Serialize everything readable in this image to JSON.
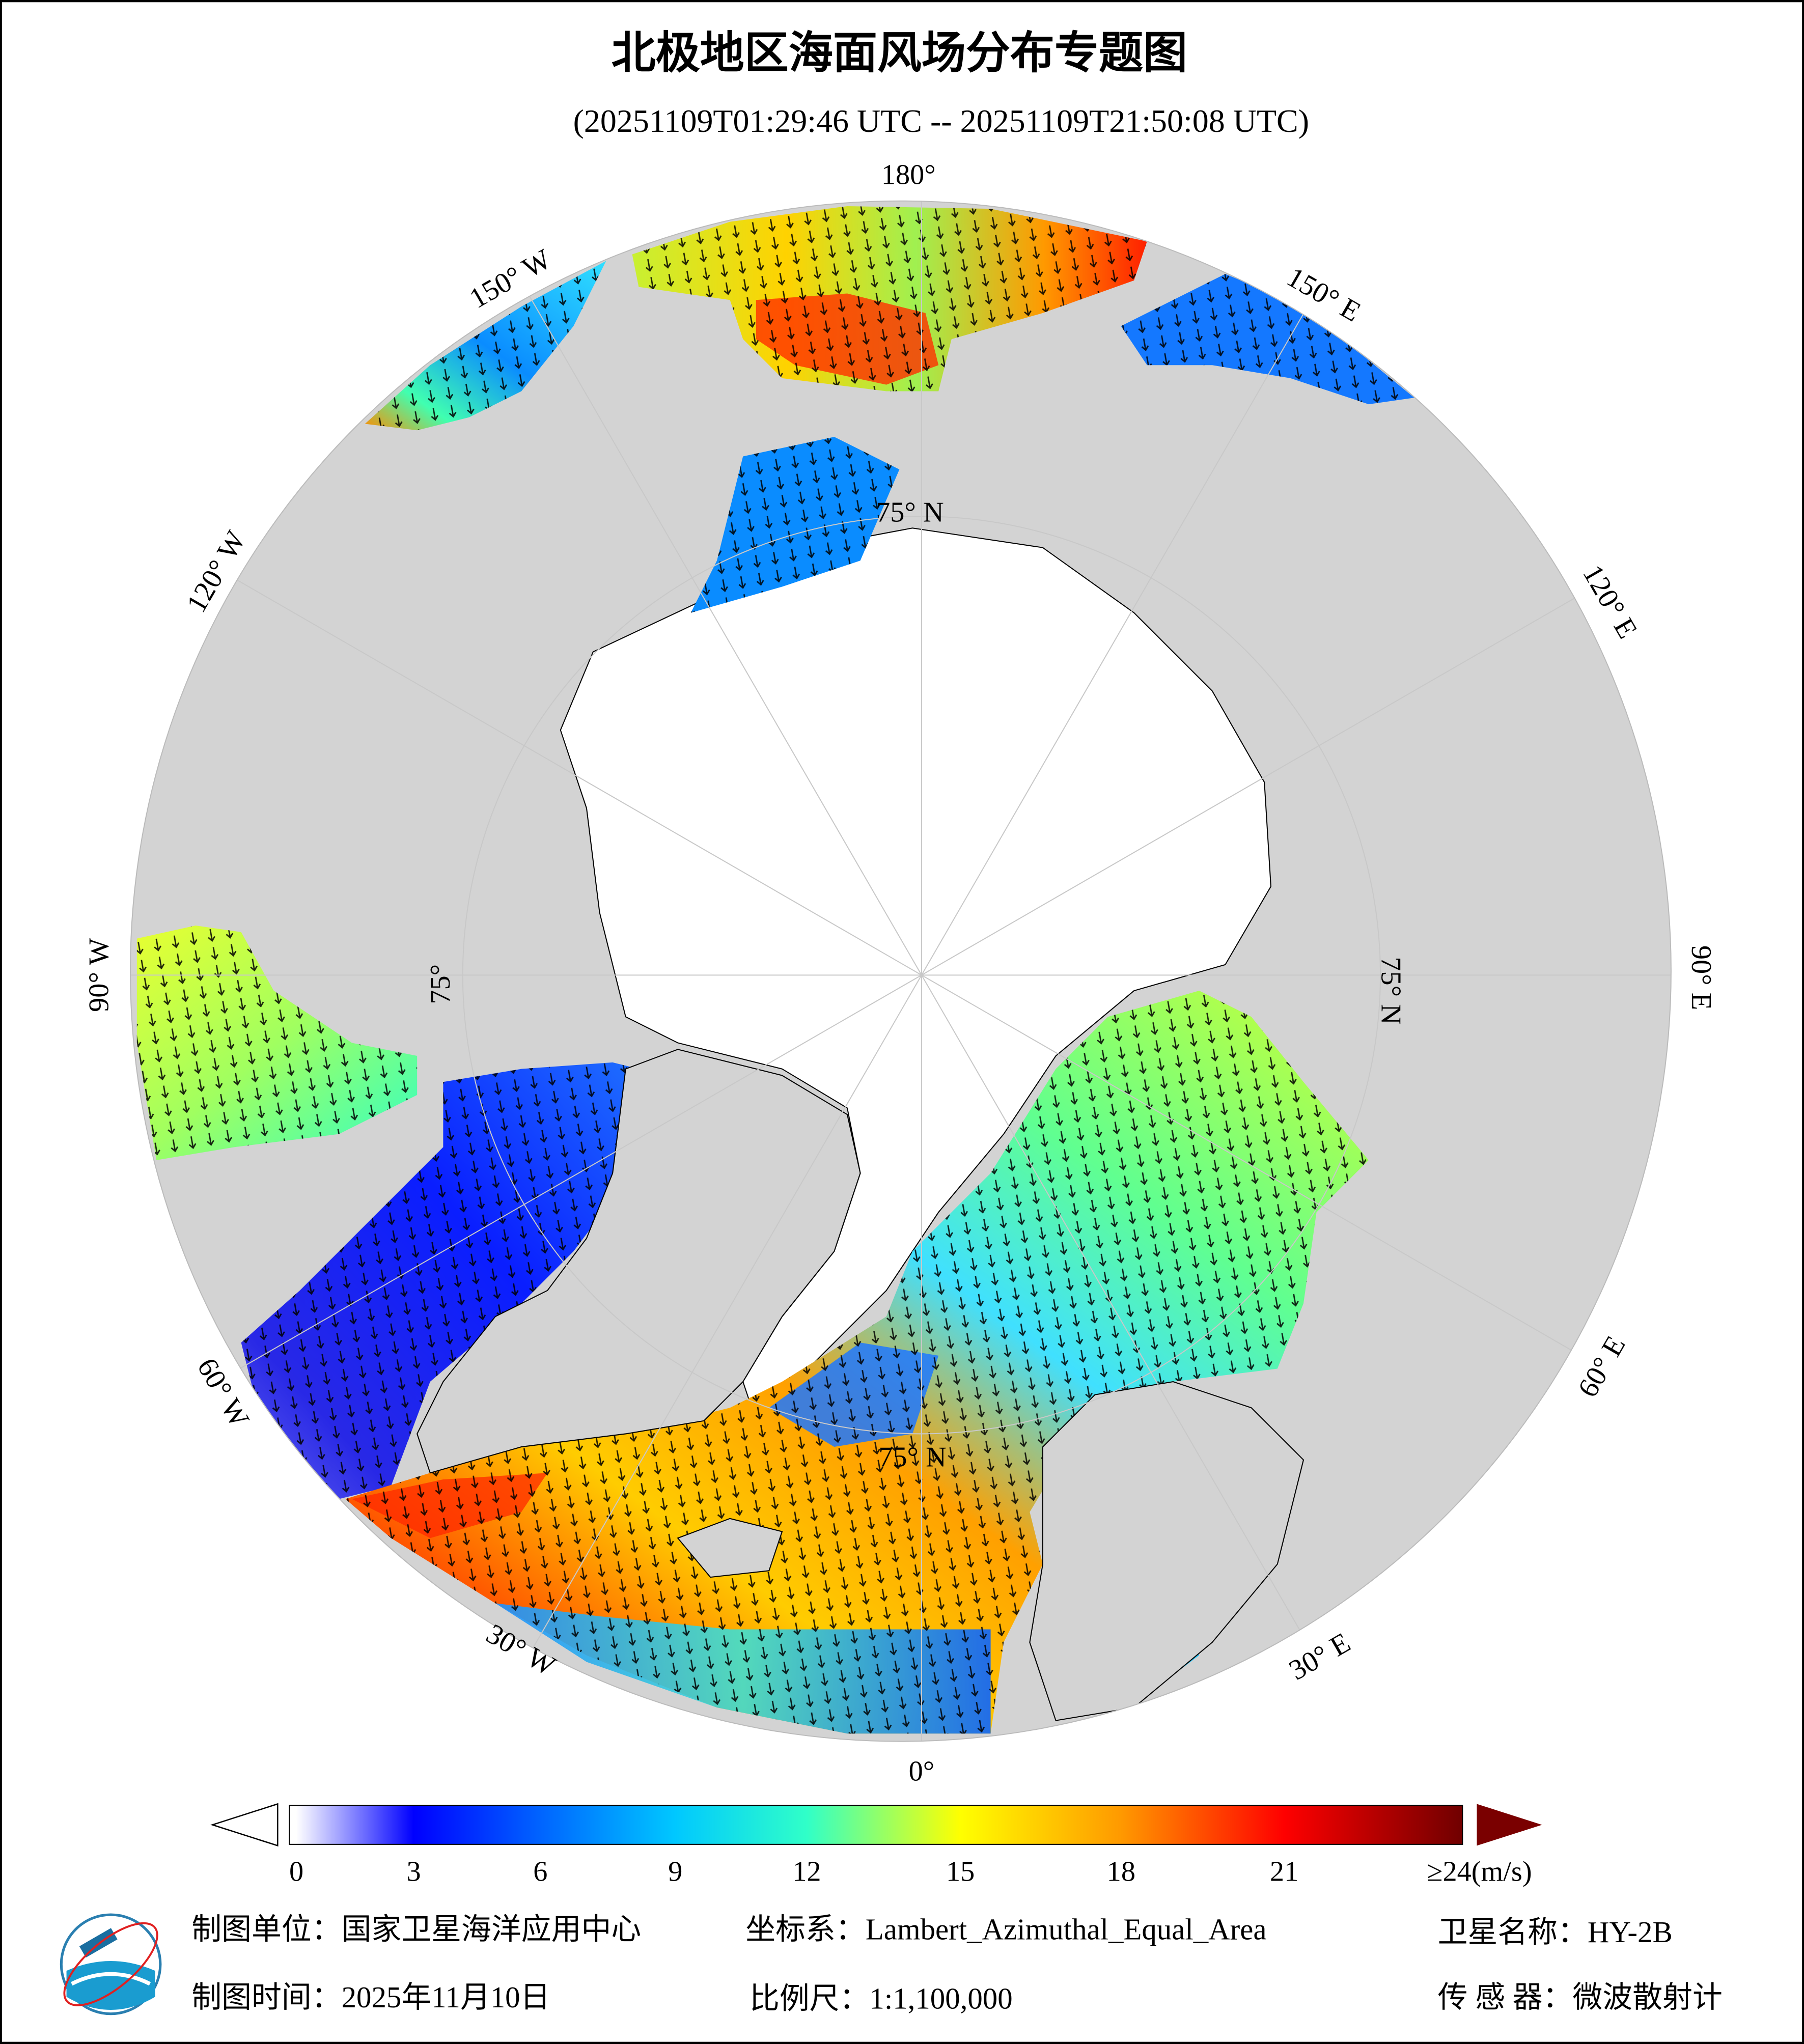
{
  "header": {
    "title": "北极地区海面风场分布专题图",
    "time_range": "(20251109T01:29:46 UTC -- 20251109T21:50:08 UTC)"
  },
  "map": {
    "projection": "Lambert_Azimuthal_Equal_Area",
    "lon_labels": {
      "n180": "180°",
      "w150": "150° W",
      "w120": "120° W",
      "w90": "90° W",
      "w60": "60° W",
      "w30": "30° W",
      "e0": "0°",
      "e30": "30° E",
      "e60": "60° E",
      "e90": "90° E",
      "e120": "120° E",
      "e150": "150° E"
    },
    "lat_labels": {
      "top": "75° N",
      "right": "75° N",
      "bottom": "75° N",
      "left": "75°"
    },
    "colors": {
      "land": "#d3d3d3",
      "ice_nodata": "#ffffff",
      "graticule": "#c8c8c8",
      "coast": "#000000",
      "arrow": "#000000"
    }
  },
  "colorbar": {
    "ticks": [
      "0",
      "3",
      "6",
      "9",
      "12",
      "15",
      "18",
      "21",
      "≥24(m/s)"
    ],
    "values": [
      0,
      3,
      6,
      9,
      12,
      15,
      18,
      21,
      24
    ],
    "unit": "m/s",
    "colors": [
      "#ffffff",
      "#0000ff",
      "#0064ff",
      "#00c8ff",
      "#30ffc8",
      "#ffff00",
      "#ff9900",
      "#ff0000",
      "#700000"
    ],
    "under_color": "#ffffff",
    "over_color": "#7a0000"
  },
  "footer": {
    "unit": "制图单位：国家卫星海洋应用中心",
    "coord": "坐标系：Lambert_Azimuthal_Equal_Area",
    "satellite": "卫星名称：HY-2B",
    "date": "制图时间：2025年11月10日",
    "scale": "比例尺：1:1,100,000",
    "sensor": "传 感 器：微波散射计",
    "logo": "国家卫星海洋应用中心"
  }
}
